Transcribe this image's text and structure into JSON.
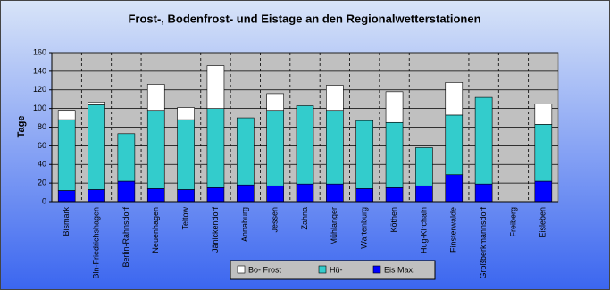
{
  "chart_data": {
    "type": "stacked-bar",
    "title": "Frost-, Bodenfrost- und Eistage an den Regionalwetterstationen",
    "y_label": "Tage",
    "categories": [
      "Bismark",
      "Bln-Friedrichshagen",
      "Berlin-Rahnsdorf",
      "Neuenhagen",
      "Teltow",
      "Jänickendorf",
      "Annaburg",
      "Jessen",
      "Zahna",
      "Mühlanger",
      "Wartenburg",
      "Köthen",
      "Hug-Kirchain",
      "Finsterwalde",
      "Großberkmannsdorf",
      "Freiberg",
      "Eisleben"
    ],
    "series": [
      {
        "name": "Bo- Frost",
        "color": "#ffffff",
        "values": [
          10,
          3,
          0,
          28,
          13,
          46,
          0,
          18,
          0,
          27,
          0,
          33,
          0,
          35,
          0,
          0,
          22
        ]
      },
      {
        "name": "Hü-",
        "color": "#33cccc",
        "values": [
          76,
          91,
          51,
          84,
          75,
          85,
          72,
          81,
          84,
          79,
          73,
          70,
          41,
          64,
          93,
          0,
          61
        ]
      },
      {
        "name": "Eis Max.",
        "color": "#0000ff",
        "values": [
          12,
          13,
          22,
          14,
          13,
          15,
          18,
          17,
          19,
          19,
          14,
          15,
          17,
          29,
          19,
          0,
          22
        ]
      }
    ],
    "ylim": [
      0,
      160
    ],
    "yticks": [
      0,
      20,
      40,
      60,
      80,
      100,
      120,
      140,
      160
    ],
    "grid": true
  }
}
